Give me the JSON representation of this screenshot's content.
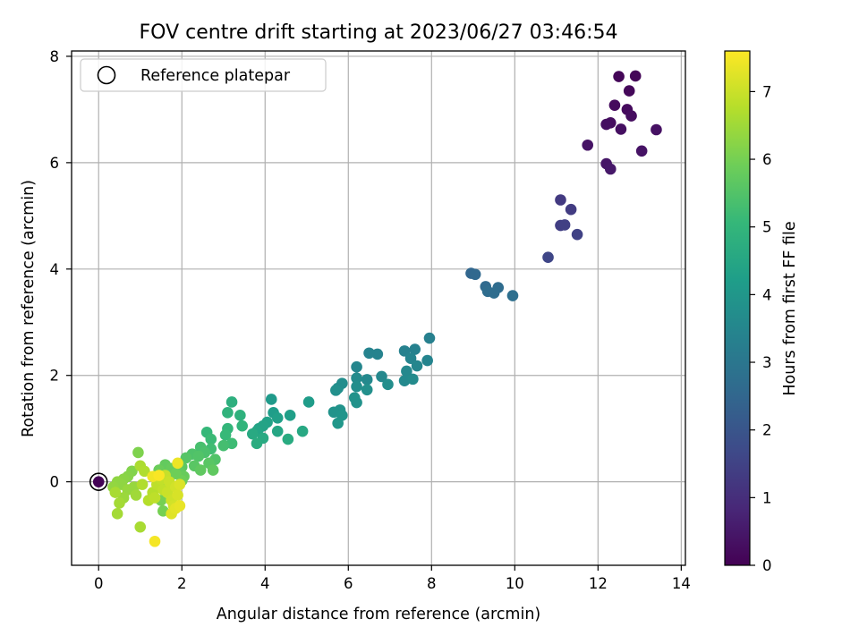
{
  "chart_data": {
    "type": "scatter",
    "title": "FOV centre drift starting at 2023/06/27 03:46:54",
    "xlabel": "Angular distance from reference (arcmin)",
    "ylabel": "Rotation from reference (arcmin)",
    "xlim": [
      -0.65,
      14.1
    ],
    "ylim": [
      -1.57,
      8.1
    ],
    "xticks": [
      "0",
      "2",
      "4",
      "6",
      "8",
      "10",
      "12",
      "14"
    ],
    "yticks": [
      "0",
      "2",
      "4",
      "6",
      "8"
    ],
    "grid": true,
    "legend": {
      "placement": "top-left",
      "entries": [
        "Reference platepar"
      ]
    },
    "reference_point": {
      "x": 0,
      "y": 0
    },
    "colorbar": {
      "label": "Hours from first FF file",
      "range": [
        0,
        7.6
      ],
      "ticks": [
        "0",
        "1",
        "2",
        "3",
        "4",
        "5",
        "6",
        "7"
      ],
      "colormap": "viridis",
      "colors": [
        "#440154",
        "#482878",
        "#3e4a89",
        "#31688e",
        "#26828e",
        "#1f9e89",
        "#35b779",
        "#6ece58",
        "#b5de2b",
        "#fde725"
      ]
    },
    "points": [
      [
        0.0,
        0.0,
        0.05
      ],
      [
        12.5,
        7.62,
        0.1
      ],
      [
        12.9,
        7.63,
        0.1
      ],
      [
        12.75,
        7.35,
        0.15
      ],
      [
        12.4,
        7.08,
        0.2
      ],
      [
        12.7,
        7.0,
        0.2
      ],
      [
        12.8,
        6.88,
        0.25
      ],
      [
        12.3,
        6.75,
        0.25
      ],
      [
        12.2,
        6.72,
        0.3
      ],
      [
        12.55,
        6.63,
        0.3
      ],
      [
        13.4,
        6.62,
        0.35
      ],
      [
        11.75,
        6.33,
        0.4
      ],
      [
        13.05,
        6.22,
        0.4
      ],
      [
        12.2,
        5.98,
        0.45
      ],
      [
        12.3,
        5.88,
        0.5
      ],
      [
        11.1,
        5.3,
        1.3
      ],
      [
        11.35,
        5.12,
        1.35
      ],
      [
        11.1,
        4.82,
        1.4
      ],
      [
        11.2,
        4.83,
        1.45
      ],
      [
        11.5,
        4.65,
        1.5
      ],
      [
        10.8,
        4.22,
        1.6
      ],
      [
        8.95,
        3.92,
        2.5
      ],
      [
        9.05,
        3.9,
        2.55
      ],
      [
        9.3,
        3.67,
        2.6
      ],
      [
        9.6,
        3.65,
        2.65
      ],
      [
        9.35,
        3.58,
        2.7
      ],
      [
        9.5,
        3.55,
        2.7
      ],
      [
        9.95,
        3.5,
        2.75
      ],
      [
        7.95,
        2.7,
        3.3
      ],
      [
        7.6,
        2.49,
        3.35
      ],
      [
        7.35,
        2.46,
        3.35
      ],
      [
        6.5,
        2.42,
        3.4
      ],
      [
        6.7,
        2.4,
        3.4
      ],
      [
        7.5,
        2.32,
        3.45
      ],
      [
        7.9,
        2.28,
        3.45
      ],
      [
        7.65,
        2.18,
        3.5
      ],
      [
        6.2,
        2.16,
        3.5
      ],
      [
        7.4,
        2.08,
        3.55
      ],
      [
        6.8,
        1.98,
        3.55
      ],
      [
        6.45,
        1.92,
        3.6
      ],
      [
        7.35,
        1.9,
        3.6
      ],
      [
        7.55,
        1.93,
        3.65
      ],
      [
        6.2,
        1.95,
        3.65
      ],
      [
        5.85,
        1.85,
        3.7
      ],
      [
        5.75,
        1.76,
        3.7
      ],
      [
        6.95,
        1.83,
        3.75
      ],
      [
        6.2,
        1.79,
        3.75
      ],
      [
        5.7,
        1.72,
        3.8
      ],
      [
        6.45,
        1.73,
        3.8
      ],
      [
        6.15,
        1.58,
        3.85
      ],
      [
        6.2,
        1.49,
        3.85
      ],
      [
        5.8,
        1.35,
        3.9
      ],
      [
        5.65,
        1.31,
        3.9
      ],
      [
        5.85,
        1.25,
        3.95
      ],
      [
        5.75,
        1.1,
        4.0
      ],
      [
        4.15,
        1.55,
        4.1
      ],
      [
        5.05,
        1.5,
        4.15
      ],
      [
        4.2,
        1.3,
        4.2
      ],
      [
        4.6,
        1.25,
        4.25
      ],
      [
        4.3,
        1.2,
        4.3
      ],
      [
        4.05,
        1.12,
        4.35
      ],
      [
        3.95,
        1.05,
        4.4
      ],
      [
        3.85,
        1.0,
        4.4
      ],
      [
        3.8,
        0.95,
        4.45
      ],
      [
        4.3,
        0.95,
        4.5
      ],
      [
        4.9,
        0.95,
        4.55
      ],
      [
        3.7,
        0.9,
        4.6
      ],
      [
        3.95,
        0.82,
        4.6
      ],
      [
        4.55,
        0.8,
        4.65
      ],
      [
        3.8,
        0.72,
        4.7
      ],
      [
        3.2,
        1.5,
        4.8
      ],
      [
        3.4,
        1.25,
        4.85
      ],
      [
        3.1,
        1.3,
        4.9
      ],
      [
        3.45,
        1.05,
        4.95
      ],
      [
        3.1,
        1.0,
        5.0
      ],
      [
        2.6,
        0.93,
        5.05
      ],
      [
        3.05,
        0.88,
        5.1
      ],
      [
        2.7,
        0.8,
        5.15
      ],
      [
        3.2,
        0.72,
        5.2
      ],
      [
        2.7,
        0.62,
        5.25
      ],
      [
        3.0,
        0.68,
        5.3
      ],
      [
        2.45,
        0.65,
        5.35
      ],
      [
        2.55,
        0.55,
        5.4
      ],
      [
        2.25,
        0.52,
        5.45
      ],
      [
        2.4,
        0.48,
        5.5
      ],
      [
        2.8,
        0.42,
        5.5
      ],
      [
        2.1,
        0.45,
        5.55
      ],
      [
        2.65,
        0.35,
        5.6
      ],
      [
        2.3,
        0.3,
        5.6
      ],
      [
        2.0,
        0.28,
        5.65
      ],
      [
        2.45,
        0.22,
        5.7
      ],
      [
        2.75,
        0.22,
        5.7
      ],
      [
        1.95,
        0.18,
        5.75
      ],
      [
        1.6,
        0.32,
        5.75
      ],
      [
        1.75,
        0.25,
        5.8
      ],
      [
        2.05,
        0.1,
        5.8
      ],
      [
        1.45,
        0.22,
        5.85
      ],
      [
        1.85,
        0.15,
        5.9
      ],
      [
        2.0,
        0.02,
        5.9
      ],
      [
        1.6,
        -0.05,
        5.95
      ],
      [
        1.5,
        -0.35,
        6.0
      ],
      [
        1.55,
        -0.55,
        6.0
      ],
      [
        0.95,
        0.55,
        6.1
      ],
      [
        0.8,
        0.2,
        6.15
      ],
      [
        0.7,
        0.1,
        6.2
      ],
      [
        0.6,
        0.05,
        6.25
      ],
      [
        0.45,
        0.0,
        6.3
      ],
      [
        0.55,
        -0.05,
        6.3
      ],
      [
        0.35,
        -0.1,
        6.35
      ],
      [
        0.7,
        -0.15,
        6.4
      ],
      [
        0.85,
        -0.1,
        6.4
      ],
      [
        0.6,
        -0.3,
        6.45
      ],
      [
        0.9,
        -0.25,
        6.5
      ],
      [
        0.5,
        -0.4,
        6.55
      ],
      [
        0.45,
        -0.6,
        6.55
      ],
      [
        1.0,
        -0.85,
        6.6
      ],
      [
        0.4,
        -0.2,
        6.6
      ],
      [
        1.0,
        0.3,
        6.65
      ],
      [
        1.1,
        0.2,
        6.7
      ],
      [
        1.05,
        -0.05,
        6.7
      ],
      [
        1.2,
        -0.35,
        6.75
      ],
      [
        1.3,
        -0.2,
        6.75
      ],
      [
        1.45,
        0.1,
        6.8
      ],
      [
        1.4,
        -0.05,
        6.85
      ],
      [
        1.35,
        -0.3,
        6.85
      ],
      [
        1.5,
        0.05,
        6.9
      ],
      [
        1.55,
        -0.15,
        6.9
      ],
      [
        1.6,
        0.12,
        6.95
      ],
      [
        1.7,
        0.0,
        7.0
      ],
      [
        1.65,
        -0.2,
        7.0
      ],
      [
        1.75,
        -0.35,
        7.05
      ],
      [
        1.8,
        -0.45,
        7.1
      ],
      [
        1.85,
        -0.1,
        7.1
      ],
      [
        1.9,
        -0.25,
        7.15
      ],
      [
        1.95,
        -0.05,
        7.2
      ],
      [
        1.75,
        -0.6,
        7.25
      ],
      [
        1.85,
        -0.5,
        7.3
      ],
      [
        1.95,
        -0.45,
        7.35
      ],
      [
        1.9,
        0.35,
        7.4
      ],
      [
        1.3,
        0.1,
        7.45
      ],
      [
        1.35,
        -1.12,
        7.5
      ],
      [
        1.45,
        0.12,
        7.55
      ]
    ]
  }
}
